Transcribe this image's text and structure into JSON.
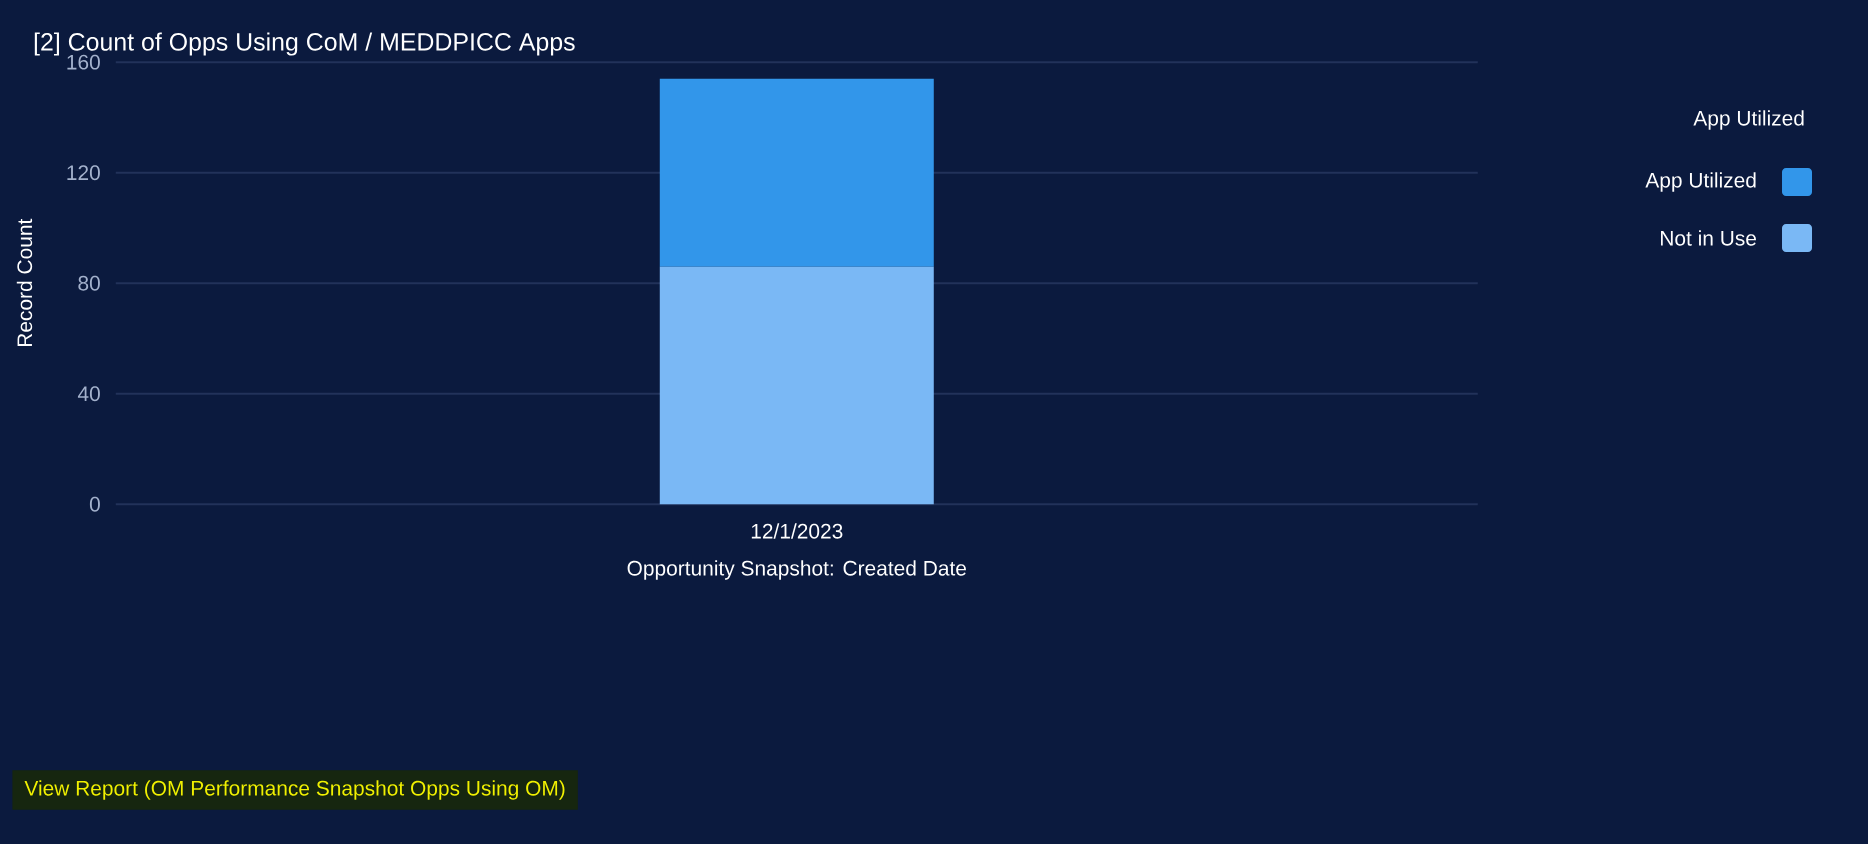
{
  "chart_data": {
    "type": "bar",
    "title": "[2] Count of Opps Using CoM / MEDDPICC Apps",
    "xlabel": "Opportunity Snapshot: Created Date",
    "ylabel": "Record Count",
    "legend_title": "App Utilized",
    "categories": [
      "12/1/2023"
    ],
    "stacked": true,
    "series": [
      {
        "name": "Not in Use",
        "color": "#7ab8f5",
        "values": [
          86
        ]
      },
      {
        "name": "App Utilized",
        "color": "#3296ea",
        "values": [
          68
        ]
      }
    ],
    "ylim": [
      0,
      160
    ],
    "yticks": [
      0,
      40,
      80,
      120,
      160
    ],
    "grid": "y",
    "legend": "top right",
    "annotations": [
      "View Report (OM Performance Snapshot Opps Using OM)"
    ]
  }
}
